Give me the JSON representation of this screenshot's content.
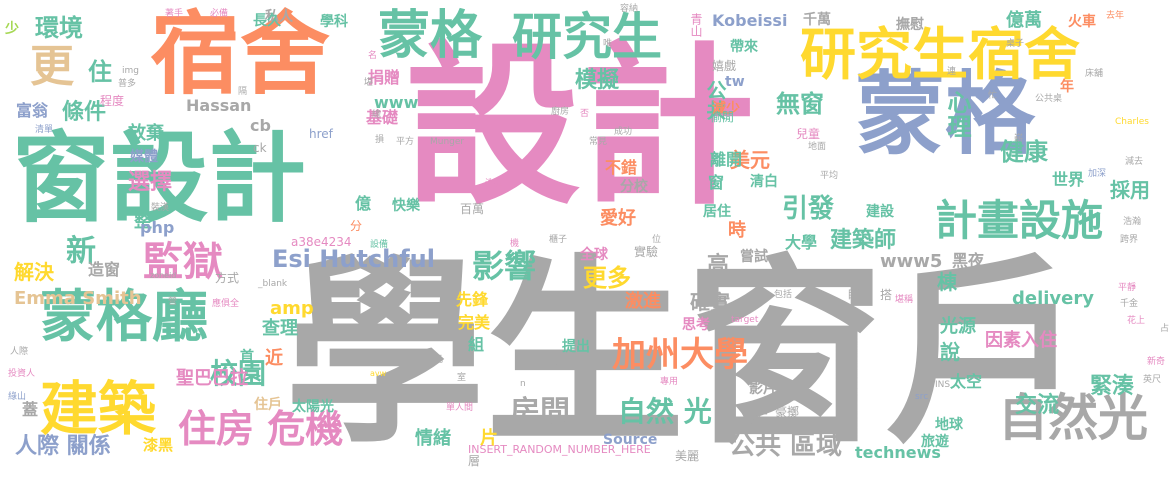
{
  "colors": {
    "gray": "#a8a8a8",
    "pink": "#e58ac1",
    "green": "#66c2a5",
    "orange": "#fc8d62",
    "blue": "#8da0cb",
    "yellow": "#ffd92f",
    "tan": "#e5c494",
    "lime": "#a6d854"
  },
  "words": [
    {
      "text": "學生窗戶",
      "color": "gray"
    },
    {
      "text": "設計",
      "color": "pink"
    },
    {
      "text": "窗設計",
      "color": "green"
    },
    {
      "text": "宿舍",
      "color": "orange"
    },
    {
      "text": "蒙格",
      "color": "blue"
    },
    {
      "text": "蒙格",
      "color": "green"
    },
    {
      "text": "研究生",
      "color": "green"
    },
    {
      "text": "研究生宿舍",
      "color": "yellow"
    },
    {
      "text": "蒙格廳",
      "color": "green"
    },
    {
      "text": "建築",
      "color": "yellow"
    },
    {
      "text": "監獄",
      "color": "pink"
    },
    {
      "text": "計畫設施",
      "color": "green"
    },
    {
      "text": "自然光",
      "color": "gray"
    },
    {
      "text": "Esi Hutchful",
      "color": "blue"
    },
    {
      "text": "住房 危機",
      "color": "pink"
    },
    {
      "text": "加州大學",
      "color": "orange"
    },
    {
      "text": "更",
      "color": "tan"
    },
    {
      "text": "環境",
      "color": "green"
    },
    {
      "text": "住",
      "color": "green"
    },
    {
      "text": "條件",
      "color": "green"
    },
    {
      "text": "富翁",
      "color": "blue"
    },
    {
      "text": "選擇",
      "color": "pink"
    },
    {
      "text": "放棄",
      "color": "green"
    },
    {
      "text": "媒體",
      "color": "blue"
    },
    {
      "text": "整",
      "color": "green"
    },
    {
      "text": "解決",
      "color": "yellow"
    },
    {
      "text": "新",
      "color": "green"
    },
    {
      "text": "Emma Smith",
      "color": "tan"
    },
    {
      "text": "人際 關係",
      "color": "blue"
    },
    {
      "text": "蓋",
      "color": "gray"
    },
    {
      "text": "漆黑",
      "color": "yellow"
    },
    {
      "text": "影響",
      "color": "green"
    },
    {
      "text": "更多",
      "color": "yellow"
    },
    {
      "text": "引發",
      "color": "green"
    },
    {
      "text": "無窗",
      "color": "green"
    },
    {
      "text": "心理",
      "color": "green"
    },
    {
      "text": "健康",
      "color": "green"
    },
    {
      "text": "採用",
      "color": "green"
    },
    {
      "text": "模擬",
      "color": "green"
    },
    {
      "text": "公共",
      "color": "green"
    },
    {
      "text": "美元",
      "color": "orange"
    },
    {
      "text": "校園",
      "color": "green"
    },
    {
      "text": "房間",
      "color": "gray"
    },
    {
      "text": "自然 光",
      "color": "green"
    },
    {
      "text": "交流",
      "color": "green"
    },
    {
      "text": "緊湊",
      "color": "green"
    },
    {
      "text": "公共 區域",
      "color": "gray"
    },
    {
      "text": "少",
      "color": "lime"
    },
    {
      "text": "私人",
      "color": "gray"
    },
    {
      "text": "長久",
      "color": "green"
    },
    {
      "text": "學科",
      "color": "green"
    },
    {
      "text": "程度",
      "color": "pink"
    },
    {
      "text": "捐贈",
      "color": "pink"
    },
    {
      "text": "www",
      "color": "green"
    },
    {
      "text": "Hassan",
      "color": "gray"
    },
    {
      "text": "cb",
      "color": "gray"
    },
    {
      "text": "ck",
      "color": "gray"
    },
    {
      "text": "href",
      "color": "blue"
    },
    {
      "text": "基礎",
      "color": "pink"
    },
    {
      "text": "減少",
      "color": "orange"
    },
    {
      "text": "億萬",
      "color": "green"
    },
    {
      "text": "年",
      "color": "orange"
    },
    {
      "text": "火車",
      "color": "orange"
    },
    {
      "text": "撫慰",
      "color": "gray"
    },
    {
      "text": "千萬",
      "color": "gray"
    },
    {
      "text": "Kobeissi",
      "color": "blue"
    },
    {
      "text": "青山",
      "color": "pink"
    },
    {
      "text": "tw",
      "color": "blue"
    },
    {
      "text": "帶來",
      "color": "green"
    },
    {
      "text": "嬉戲",
      "color": "gray"
    },
    {
      "text": "偷閒",
      "color": "green"
    },
    {
      "text": "世界",
      "color": "green"
    },
    {
      "text": "不錯",
      "color": "orange"
    },
    {
      "text": "窗",
      "color": "green"
    },
    {
      "text": "分校",
      "color": "gray"
    },
    {
      "text": "離開",
      "color": "green"
    },
    {
      "text": "清白",
      "color": "green"
    },
    {
      "text": "居住",
      "color": "green"
    },
    {
      "text": "愛好",
      "color": "orange"
    },
    {
      "text": "時",
      "color": "orange"
    },
    {
      "text": "建設",
      "color": "green"
    },
    {
      "text": "大學",
      "color": "green"
    },
    {
      "text": "建築師",
      "color": "green"
    },
    {
      "text": "億",
      "color": "green"
    },
    {
      "text": "快樂",
      "color": "green"
    },
    {
      "text": "百萬",
      "color": "gray"
    },
    {
      "text": "php",
      "color": "blue"
    },
    {
      "text": "a38e4234",
      "color": "pink"
    },
    {
      "text": "分",
      "color": "orange"
    },
    {
      "text": "造窗",
      "color": "gray"
    },
    {
      "text": "全球",
      "color": "pink"
    },
    {
      "text": "實驗",
      "color": "gray"
    },
    {
      "text": "嘗試",
      "color": "gray"
    },
    {
      "text": "www5",
      "color": "gray"
    },
    {
      "text": "黑夜",
      "color": "gray"
    },
    {
      "text": "高",
      "color": "gray"
    },
    {
      "text": "確實",
      "color": "gray"
    },
    {
      "text": "棟",
      "color": "green"
    },
    {
      "text": "光源",
      "color": "green"
    },
    {
      "text": "delivery",
      "color": "green"
    },
    {
      "text": "先鋒",
      "color": "yellow"
    },
    {
      "text": "激進",
      "color": "orange"
    },
    {
      "text": "思考",
      "color": "pink"
    },
    {
      "text": "完美",
      "color": "yellow"
    },
    {
      "text": "組",
      "color": "green"
    },
    {
      "text": "amp",
      "color": "yellow"
    },
    {
      "text": "查理",
      "color": "green"
    },
    {
      "text": "近",
      "color": "orange"
    },
    {
      "text": "首",
      "color": "green"
    },
    {
      "text": "聖巴巴拉",
      "color": "pink"
    },
    {
      "text": "住戶",
      "color": "tan"
    },
    {
      "text": "太陽光",
      "color": "green"
    },
    {
      "text": "提出",
      "color": "green"
    },
    {
      "text": "說",
      "color": "green"
    },
    {
      "text": "因素入住",
      "color": "pink"
    },
    {
      "text": "太空",
      "color": "green"
    },
    {
      "text": "影片",
      "color": "gray"
    },
    {
      "text": "豪擲",
      "color": "gray"
    },
    {
      "text": "旅行",
      "color": "gray"
    },
    {
      "text": "情緒",
      "color": "green"
    },
    {
      "text": "片",
      "color": "yellow"
    },
    {
      "text": "Source",
      "color": "blue"
    },
    {
      "text": "technews",
      "color": "green"
    },
    {
      "text": "INSERT_RANDOM_NUMBER_HERE",
      "color": "pink"
    },
    {
      "text": "層",
      "color": "gray"
    },
    {
      "text": "美麗",
      "color": "gray"
    },
    {
      "text": "旅遊",
      "color": "green"
    },
    {
      "text": "地球",
      "color": "green"
    },
    {
      "text": "方式",
      "color": "gray"
    },
    {
      "text": "_blank",
      "color": "gray"
    },
    {
      "text": "Munger",
      "color": "gray"
    },
    {
      "text": "Charles",
      "color": "yellow"
    },
    {
      "text": "target",
      "color": "pink"
    },
    {
      "text": "avw",
      "color": "yellow"
    },
    {
      "text": "src",
      "color": "blue"
    },
    {
      "text": "zoneid",
      "color": "gray"
    },
    {
      "text": "著手",
      "color": "pink"
    },
    {
      "text": "必備",
      "color": "pink"
    },
    {
      "text": "名",
      "color": "pink"
    },
    {
      "text": "img",
      "color": "gray"
    },
    {
      "text": "普多",
      "color": "gray"
    },
    {
      "text": "清單",
      "color": "blue"
    },
    {
      "text": "堪",
      "color": "gray"
    },
    {
      "text": "總",
      "color": "gray"
    },
    {
      "text": "損",
      "color": "gray"
    },
    {
      "text": "平方",
      "color": "gray"
    },
    {
      "text": "否",
      "color": "pink"
    },
    {
      "text": "廚房",
      "color": "gray"
    },
    {
      "text": "常見",
      "color": "gray"
    },
    {
      "text": "成功",
      "color": "gray"
    },
    {
      "text": "洗衣",
      "color": "pink"
    },
    {
      "text": "裝漢",
      "color": "gray"
    },
    {
      "text": "設備",
      "color": "green"
    },
    {
      "text": "機",
      "color": "pink"
    },
    {
      "text": "櫃子",
      "color": "gray"
    },
    {
      "text": "位",
      "color": "gray"
    },
    {
      "text": "包括",
      "color": "gray"
    },
    {
      "text": "睹",
      "color": "gray"
    },
    {
      "text": "搭",
      "color": "gray"
    },
    {
      "text": "堪稱",
      "color": "pink"
    },
    {
      "text": "平均",
      "color": "gray"
    },
    {
      "text": "地面",
      "color": "gray"
    },
    {
      "text": "兒童",
      "color": "pink"
    },
    {
      "text": "公共桌",
      "color": "gray"
    },
    {
      "text": "桌子",
      "color": "gray"
    },
    {
      "text": "床舖",
      "color": "gray"
    },
    {
      "text": "去年",
      "color": "orange"
    },
    {
      "text": "忙",
      "color": "gray"
    },
    {
      "text": "連",
      "color": "gray"
    },
    {
      "text": "減去",
      "color": "gray"
    },
    {
      "text": "加深",
      "color": "blue"
    },
    {
      "text": "浩瀚",
      "color": "gray"
    },
    {
      "text": "跨界",
      "color": "gray"
    },
    {
      "text": "千金",
      "color": "gray"
    },
    {
      "text": "平靜",
      "color": "pink"
    },
    {
      "text": "花上",
      "color": "pink"
    },
    {
      "text": "占",
      "color": "gray"
    },
    {
      "text": "新奇",
      "color": "pink"
    },
    {
      "text": "英尺",
      "color": "gray"
    },
    {
      "text": "人際",
      "color": "gray"
    },
    {
      "text": "投資人",
      "color": "pink"
    },
    {
      "text": "綠山",
      "color": "blue"
    },
    {
      "text": "單人間",
      "color": "pink"
    },
    {
      "text": "元",
      "color": "gray"
    },
    {
      "text": "室",
      "color": "gray"
    },
    {
      "text": "專用",
      "color": "pink"
    },
    {
      "text": "唯",
      "color": "gray"
    },
    {
      "text": "容納",
      "color": "gray"
    },
    {
      "text": "應俱全",
      "color": "pink"
    },
    {
      "text": "營",
      "color": "gray"
    },
    {
      "text": "隔",
      "color": "gray"
    },
    {
      "text": "a",
      "color": "gray"
    },
    {
      "text": "n",
      "color": "gray"
    },
    {
      "text": "INS",
      "color": "gray"
    },
    {
      "text": "嶄",
      "color": "gray"
    },
    {
      "text": "獨",
      "color": "gray"
    },
    {
      "text": "裡",
      "color": "gray"
    }
  ]
}
